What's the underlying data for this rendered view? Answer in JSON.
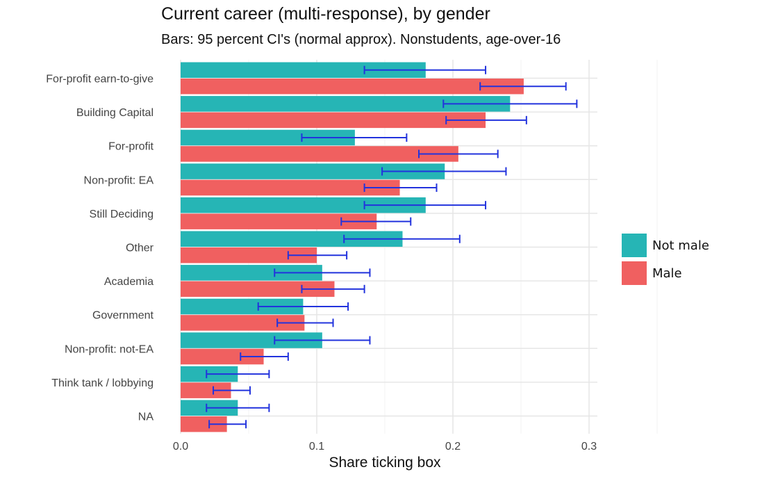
{
  "chart_data": {
    "type": "bar",
    "orientation": "horizontal",
    "title": "Current career (multi-response), by gender",
    "subtitle": "Bars: 95 percent CI's (normal approx). Nonstudents, age-over-16",
    "xlabel": "Share ticking box",
    "ylabel": "",
    "xlim": [
      0,
      0.3
    ],
    "xticks": [
      "0.0",
      "0.1",
      "0.2",
      "0.3"
    ],
    "grid": true,
    "legend_position": "right",
    "categories": [
      "For-profit earn-to-give",
      "Building Capital",
      "For-profit",
      "Non-profit: EA",
      "Still Deciding",
      "Other",
      "Academia",
      "Government",
      "Non-profit: not-EA",
      "Think tank / lobbying",
      "NA"
    ],
    "series": [
      {
        "name": "Not male",
        "color": "#26b5b5",
        "values": [
          0.18,
          0.242,
          0.128,
          0.194,
          0.18,
          0.163,
          0.104,
          0.09,
          0.104,
          0.042,
          0.042
        ],
        "ci_low": [
          0.135,
          0.193,
          0.089,
          0.148,
          0.135,
          0.12,
          0.069,
          0.057,
          0.069,
          0.019,
          0.019
        ],
        "ci_high": [
          0.224,
          0.291,
          0.166,
          0.239,
          0.224,
          0.205,
          0.139,
          0.123,
          0.139,
          0.065,
          0.065
        ]
      },
      {
        "name": "Male",
        "color": "#f06060",
        "values": [
          0.252,
          0.224,
          0.204,
          0.161,
          0.144,
          0.1,
          0.113,
          0.091,
          0.061,
          0.037,
          0.034
        ],
        "ci_low": [
          0.22,
          0.195,
          0.175,
          0.135,
          0.118,
          0.079,
          0.089,
          0.071,
          0.044,
          0.024,
          0.021
        ],
        "ci_high": [
          0.283,
          0.254,
          0.233,
          0.188,
          0.169,
          0.122,
          0.135,
          0.112,
          0.079,
          0.051,
          0.048
        ]
      }
    ],
    "error_bar_color": "#2233dd"
  }
}
